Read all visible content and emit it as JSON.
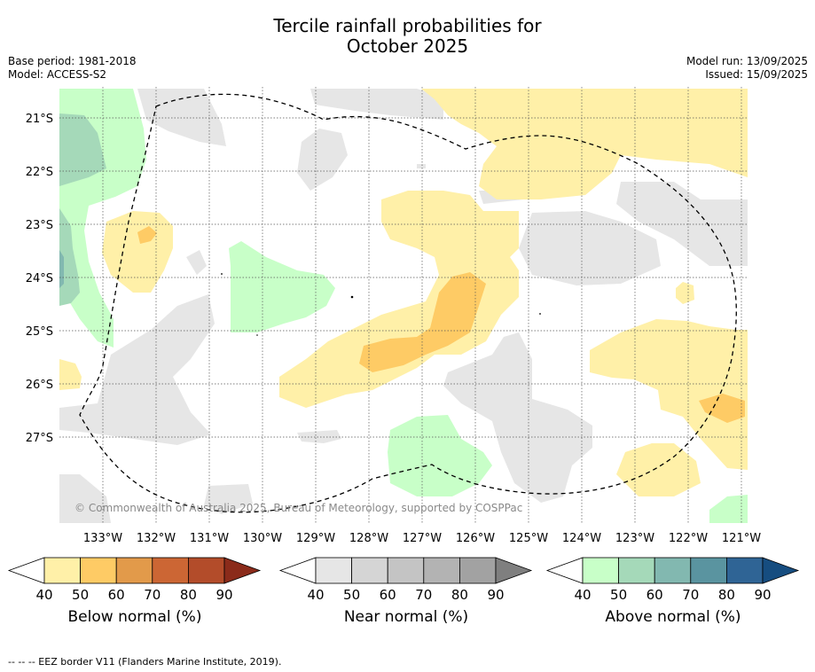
{
  "title_line1": "Tercile rainfall probabilities for",
  "title_line2": "October 2025",
  "base_period": "Base period: 1981-2018",
  "model": "Model: ACCESS-S2",
  "model_run": "Model run: 13/09/2025",
  "issued": "Issued: 15/09/2025",
  "lat_labels": [
    "21°S",
    "22°S",
    "23°S",
    "24°S",
    "25°S",
    "26°S",
    "27°S"
  ],
  "lon_labels": [
    "133°W",
    "132°W",
    "131°W",
    "130°W",
    "129°W",
    "128°W",
    "127°W",
    "126°W",
    "125°W",
    "124°W",
    "123°W",
    "122°W",
    "121°W"
  ],
  "copyright": "© Commonwealth of Australia 2025, Bureau of Meteorology, supported by COSPPac",
  "colorbars": [
    {
      "title": "Below normal (%)",
      "ticks": [
        "40",
        "50",
        "60",
        "70",
        "80",
        "90"
      ],
      "colors": [
        "#fff0a8",
        "#fecb65",
        "#e29a4a",
        "#cc6634",
        "#b34c2a",
        "#8b2b1a"
      ]
    },
    {
      "title": "Near normal (%)",
      "ticks": [
        "40",
        "50",
        "60",
        "70",
        "80",
        "90"
      ],
      "colors": [
        "#e6e6e6",
        "#d5d5d5",
        "#c4c4c4",
        "#b3b3b3",
        "#a2a2a2",
        "#7f7f7f"
      ]
    },
    {
      "title": "Above normal (%)",
      "ticks": [
        "40",
        "50",
        "60",
        "70",
        "80",
        "90"
      ],
      "colors": [
        "#c8ffc8",
        "#a5d9b9",
        "#82b8b0",
        "#5a94a0",
        "#2f6495",
        "#164d80"
      ]
    }
  ],
  "footnote": "--  --  -- EEZ border V11 (Flanders Marine Institute, 2019)."
}
